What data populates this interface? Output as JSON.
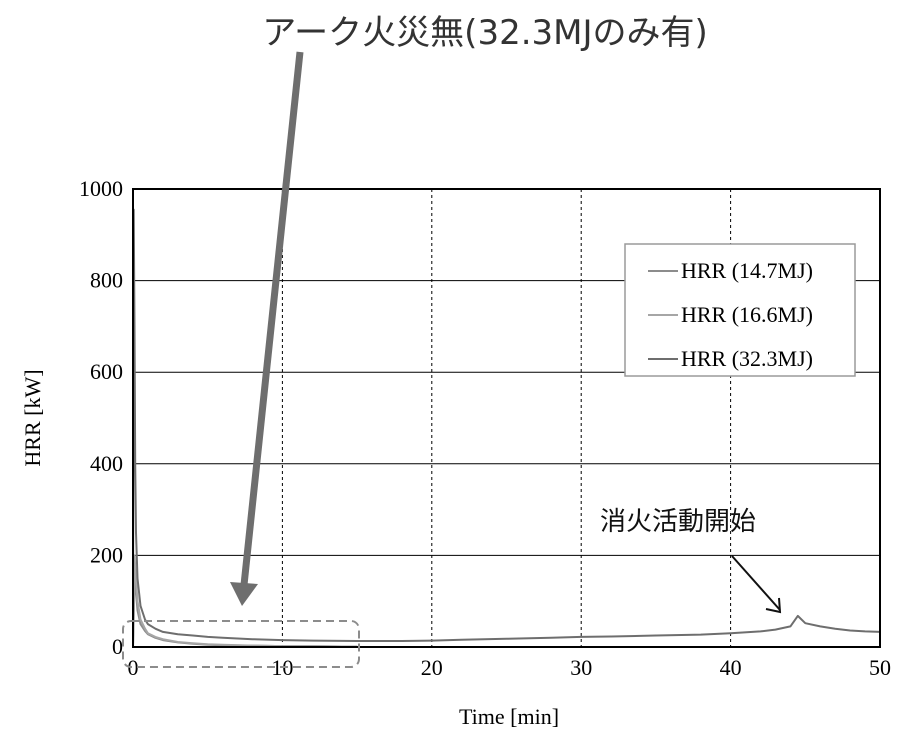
{
  "chart_data": {
    "type": "line",
    "title": "",
    "xlabel": "Time [min]",
    "ylabel": "HRR [kW]",
    "xlim": [
      0,
      50
    ],
    "ylim": [
      0,
      1000
    ],
    "xticks": [
      0,
      10,
      20,
      30,
      40,
      50
    ],
    "yticks": [
      0,
      200,
      400,
      600,
      800,
      1000
    ],
    "grid": "dashed vertical and solid horizontal gridlines",
    "legend_position": "top-right",
    "series": [
      {
        "name": "HRR (14.7MJ)",
        "color": "#8c8c8c",
        "x": [
          0,
          0.05,
          0.1,
          0.2,
          0.3,
          0.5,
          0.8,
          1,
          1.5,
          2,
          3,
          4,
          5,
          6,
          8,
          10,
          12,
          14,
          15
        ],
        "y": [
          0,
          60,
          150,
          120,
          80,
          50,
          35,
          28,
          20,
          15,
          10,
          7,
          5,
          4,
          3,
          2,
          2,
          1,
          1
        ]
      },
      {
        "name": "HRR (16.6MJ)",
        "color": "#a6a6a6",
        "x": [
          0,
          0.05,
          0.1,
          0.2,
          0.3,
          0.5,
          0.8,
          1,
          1.5,
          2,
          3,
          4,
          5,
          6,
          8,
          10,
          12,
          14,
          15
        ],
        "y": [
          0,
          80,
          200,
          150,
          100,
          60,
          40,
          30,
          22,
          17,
          11,
          8,
          6,
          5,
          3,
          2,
          2,
          1,
          1
        ]
      },
      {
        "name": "HRR (32.3MJ)",
        "color": "#6e6e6e",
        "x": [
          0,
          0.05,
          0.1,
          0.15,
          0.2,
          0.3,
          0.5,
          0.8,
          1,
          1.5,
          2,
          3,
          4,
          5,
          6,
          8,
          10,
          12,
          15,
          18,
          20,
          22,
          25,
          28,
          30,
          32,
          35,
          38,
          40,
          42,
          43,
          44,
          44.5,
          45,
          46,
          47,
          48,
          49,
          50
        ],
        "y": [
          0,
          955,
          700,
          400,
          250,
          150,
          90,
          60,
          50,
          40,
          33,
          28,
          25,
          22,
          20,
          17,
          15,
          14,
          13,
          13,
          14,
          16,
          18,
          20,
          22,
          23,
          25,
          27,
          30,
          34,
          38,
          45,
          68,
          52,
          45,
          40,
          36,
          34,
          33
        ]
      }
    ]
  },
  "annotations": {
    "arc_note": "アーク火災無(32.3MJのみ有)",
    "extinguish_note": "消火活動開始"
  },
  "colors": {
    "arrow": "#6e6e6e",
    "dashed_box": "#8c8c8c",
    "axis": "#000000"
  }
}
